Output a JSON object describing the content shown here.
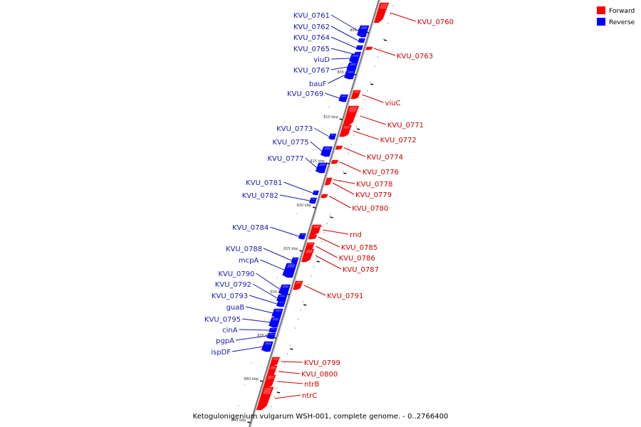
{
  "caption": "Ketogulonigenium vulgarum WSH-001, complete genome. - 0..2766400",
  "legend": {
    "forward_label": "Forward",
    "reverse_label": "Reverse",
    "forward_color": "#ff0000",
    "reverse_color": "#0000ff"
  },
  "colors": {
    "forward_text": "#cc0000",
    "reverse_text": "#1a1aaa",
    "axis": "#777777"
  },
  "ruler": {
    "labels": [
      "800 kbp",
      "805 kbp",
      "810 kbp",
      "815 kbp",
      "820 kbp",
      "825 kbp",
      "830 kbp",
      "835 kbp",
      "840 kbp",
      "845 kbp"
    ]
  },
  "forward_genes": [
    {
      "name": "KVU_0760"
    },
    {
      "name": "KVU_0763"
    },
    {
      "name": "viuC"
    },
    {
      "name": "KVU_0771"
    },
    {
      "name": "KVU_0772"
    },
    {
      "name": "KVU_0774"
    },
    {
      "name": "KVU_0776"
    },
    {
      "name": "KVU_0778"
    },
    {
      "name": "KVU_0779"
    },
    {
      "name": "KVU_0780"
    },
    {
      "name": "rnd"
    },
    {
      "name": "KVU_0785"
    },
    {
      "name": "KVU_0786"
    },
    {
      "name": "KVU_0787"
    },
    {
      "name": "KVU_0791"
    },
    {
      "name": "KVU_0799"
    },
    {
      "name": "KVU_0800"
    },
    {
      "name": "ntrB"
    },
    {
      "name": "ntrC"
    }
  ],
  "reverse_genes": [
    {
      "name": "KVU_0761"
    },
    {
      "name": "KVU_0762"
    },
    {
      "name": "KVU_0764"
    },
    {
      "name": "KVU_0765"
    },
    {
      "name": "viuD"
    },
    {
      "name": "KVU_0767"
    },
    {
      "name": "bauF"
    },
    {
      "name": "KVU_0769"
    },
    {
      "name": "KVU_0773"
    },
    {
      "name": "KVU_0775"
    },
    {
      "name": "KVU_0777"
    },
    {
      "name": "KVU_0781"
    },
    {
      "name": "KVU_0782"
    },
    {
      "name": "KVU_0784"
    },
    {
      "name": "KVU_0788"
    },
    {
      "name": "mcpA"
    },
    {
      "name": "KVU_0790"
    },
    {
      "name": "KVU_0792"
    },
    {
      "name": "KVU_0793"
    },
    {
      "name": "guaB"
    },
    {
      "name": "KVU_0795"
    },
    {
      "name": "cinA"
    },
    {
      "name": "pgpA"
    },
    {
      "name": "ispDF"
    }
  ]
}
